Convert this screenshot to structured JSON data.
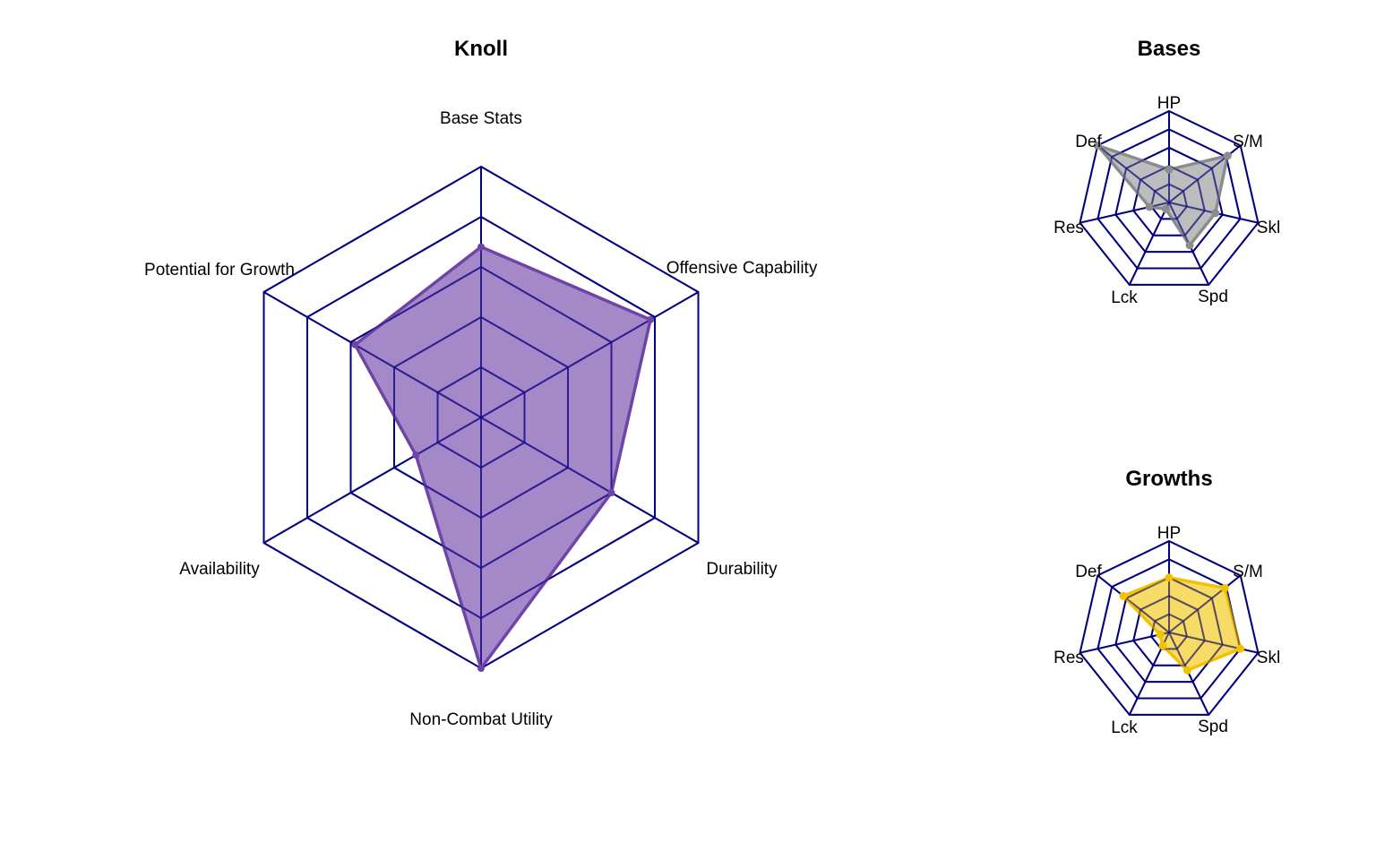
{
  "colors": {
    "grid": "#000080",
    "main_fill": "#7B4FAE",
    "main_line": "#6E45A7",
    "bases_fill": "#9E9E9E",
    "bases_line": "#8C8C8C",
    "growths_fill": "#F2CC1E",
    "growths_line": "#F2C200"
  },
  "chart_data": [
    {
      "type": "radar",
      "title": "Knoll",
      "axes": [
        "Base Stats",
        "Offensive Capability",
        "Durability",
        "Non-Combat Utility",
        "Availability",
        "Potential for Growth"
      ],
      "levels": 5,
      "range": [
        0,
        5
      ],
      "values": [
        3.4,
        3.9,
        3.0,
        5.0,
        1.5,
        2.9
      ]
    },
    {
      "type": "radar",
      "title": "Bases",
      "axes": [
        "HP",
        "S/M",
        "Skl",
        "Spd",
        "Lck",
        "Def",
        "Res"
      ],
      "levels": 5,
      "range": [
        0,
        5
      ],
      "values": [
        1.8,
        4.1,
        2.6,
        2.6,
        0.4,
        1.1,
        5.0
      ]
    },
    {
      "type": "radar",
      "title": "Growths",
      "axes": [
        "HP",
        "S/M",
        "Skl",
        "Spd",
        "Lck",
        "Def",
        "Res"
      ],
      "levels": 5,
      "range": [
        0,
        5
      ],
      "values": [
        3.0,
        3.9,
        4.0,
        2.3,
        0.8,
        0.5,
        3.2
      ]
    }
  ]
}
